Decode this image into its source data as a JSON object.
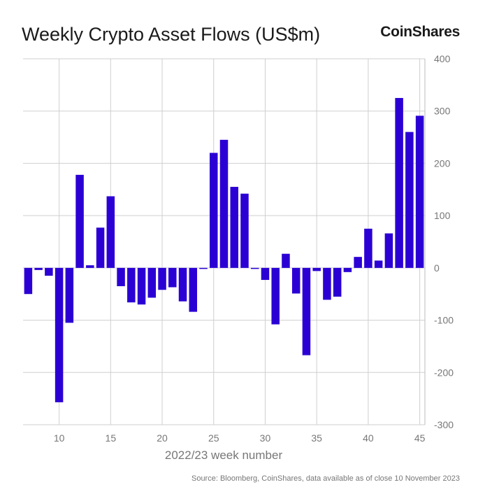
{
  "header": {
    "title": "Weekly Crypto Asset Flows (US$m)",
    "brand": "CoinShares"
  },
  "footer": {
    "source": "Source: Bloomberg, CoinShares, data available as of close 10 November 2023"
  },
  "colors": {
    "bar": "#2b00d4",
    "grid": "#cfcfcf",
    "axis": "#bbbbbb"
  },
  "chart_data": {
    "type": "bar",
    "title": "Weekly Crypto Asset Flows (US$m)",
    "xlabel": "2022/23 week number",
    "ylabel": "",
    "ylim": [
      -300,
      400
    ],
    "xlim": [
      6.5,
      45.5
    ],
    "y_ticks": [
      400,
      300,
      200,
      100,
      0,
      -100,
      -200,
      -300
    ],
    "x_ticks": [
      10,
      15,
      20,
      25,
      30,
      35,
      40,
      45
    ],
    "grid": true,
    "x": [
      7,
      8,
      9,
      10,
      11,
      12,
      13,
      14,
      15,
      16,
      17,
      18,
      19,
      20,
      21,
      22,
      23,
      24,
      25,
      26,
      27,
      28,
      29,
      30,
      31,
      32,
      33,
      34,
      35,
      36,
      37,
      38,
      39,
      40,
      41,
      42,
      43,
      44,
      45
    ],
    "values": [
      -50,
      -4,
      -15,
      -257,
      -105,
      178,
      5,
      77,
      137,
      -35,
      -66,
      -70,
      -57,
      -42,
      -37,
      -64,
      -84,
      -2,
      220,
      245,
      155,
      142,
      -1,
      -23,
      -108,
      27,
      -49,
      -167,
      -6,
      -61,
      -55,
      -8,
      21,
      75,
      14,
      66,
      325,
      260,
      291
    ]
  }
}
